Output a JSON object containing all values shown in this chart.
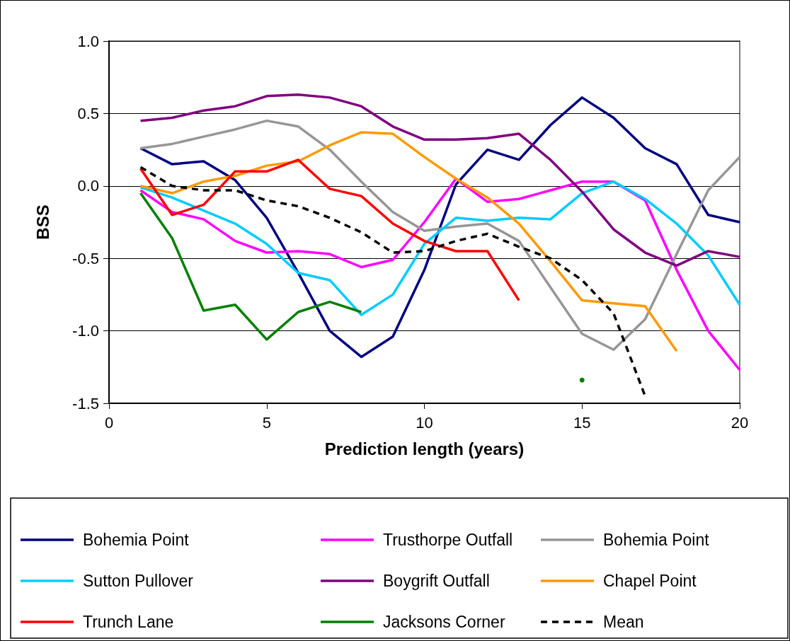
{
  "chart_data": {
    "type": "line",
    "xlabel": "Prediction length (years)",
    "ylabel": "BSS",
    "x": [
      1,
      2,
      3,
      4,
      5,
      6,
      7,
      8,
      9,
      10,
      11,
      12,
      13,
      14,
      15,
      16,
      17,
      18,
      19,
      20
    ],
    "xlim": [
      0,
      20
    ],
    "xticks": [
      0,
      5,
      10,
      15,
      20
    ],
    "ylim": [
      -1.5,
      1.0
    ],
    "yticks": [
      {
        "value": -1.5,
        "label": "-1.5"
      },
      {
        "value": -1.0,
        "label": "-1.0"
      },
      {
        "value": -0.5,
        "label": "-0.5"
      },
      {
        "value": 0,
        "label": "0.0"
      },
      {
        "value": 0.5,
        "label": "0.5"
      },
      {
        "value": 1.0,
        "label": "1.0"
      }
    ],
    "grid": "y",
    "legend": "bottom",
    "marker": "none",
    "series": [
      {
        "name": "Bohemia Point",
        "color": "#000080",
        "values": [
          0.26,
          0.15,
          0.17,
          0.04,
          -0.22,
          -0.6,
          -1.0,
          -1.18,
          -1.04,
          -0.58,
          0.01,
          0.25,
          0.18,
          0.42,
          0.61,
          0.47,
          0.26,
          0.15,
          -0.2,
          -0.25
        ]
      },
      {
        "name": "Trusthorpe Outfall",
        "color": "#ff00ff",
        "values": [
          -0.03,
          -0.18,
          -0.23,
          -0.38,
          -0.46,
          -0.45,
          -0.47,
          -0.56,
          -0.51,
          -0.25,
          0.05,
          -0.11,
          -0.09,
          -0.03,
          0.03,
          0.03,
          -0.1,
          -0.58,
          -1.0,
          -1.27
        ]
      },
      {
        "name": "Bohemia Point",
        "color": "#969696",
        "values": [
          0.26,
          0.29,
          0.34,
          0.39,
          0.45,
          0.41,
          0.25,
          0.03,
          -0.18,
          -0.31,
          -0.28,
          -0.26,
          -0.38,
          -0.7,
          -1.02,
          -1.13,
          -0.92,
          -0.47,
          -0.03,
          0.2
        ]
      },
      {
        "name": "Sutton Pullover",
        "color": "#00ccff",
        "values": [
          -0.01,
          -0.08,
          -0.17,
          -0.26,
          -0.4,
          -0.6,
          -0.65,
          -0.89,
          -0.75,
          -0.4,
          -0.22,
          -0.24,
          -0.22,
          -0.23,
          -0.05,
          0.03,
          -0.09,
          -0.26,
          -0.48,
          -0.82
        ]
      },
      {
        "name": "Boygrift Outfall",
        "color": "#800080",
        "values": [
          0.45,
          0.47,
          0.52,
          0.55,
          0.62,
          0.63,
          0.61,
          0.55,
          0.41,
          0.32,
          0.32,
          0.33,
          0.36,
          0.18,
          -0.04,
          -0.3,
          -0.46,
          -0.55,
          -0.45,
          -0.49
        ]
      },
      {
        "name": "Chapel Point",
        "color": "#ff9900",
        "values": [
          0.0,
          -0.05,
          0.03,
          0.07,
          0.14,
          0.17,
          0.28,
          0.37,
          0.36,
          0.2,
          0.05,
          -0.08,
          -0.26,
          -0.52,
          -0.79,
          -0.81,
          -0.83,
          -1.14,
          null,
          null
        ]
      },
      {
        "name": "Trunch Lane",
        "color": "#ff0000",
        "values": [
          0.12,
          -0.2,
          -0.13,
          0.1,
          0.1,
          0.18,
          -0.02,
          -0.07,
          -0.26,
          -0.38,
          -0.45,
          -0.45,
          -0.79,
          null,
          null,
          null,
          null,
          null,
          null,
          null
        ]
      },
      {
        "name": "Jacksons Corner",
        "color": "#008000",
        "values": [
          -0.05,
          -0.36,
          -0.86,
          -0.82,
          -1.06,
          -0.87,
          -0.8,
          -0.87,
          null,
          null,
          null,
          null,
          null,
          null,
          -1.34,
          null,
          null,
          null,
          null,
          null
        ]
      },
      {
        "name": "Mean",
        "color": "#000000",
        "line_style": "dashed",
        "values": [
          0.13,
          0.0,
          -0.03,
          -0.03,
          -0.1,
          -0.14,
          -0.22,
          -0.32,
          -0.46,
          -0.45,
          -0.38,
          -0.33,
          -0.42,
          -0.5,
          -0.65,
          -0.88,
          -1.45,
          null,
          null,
          null
        ]
      }
    ]
  }
}
